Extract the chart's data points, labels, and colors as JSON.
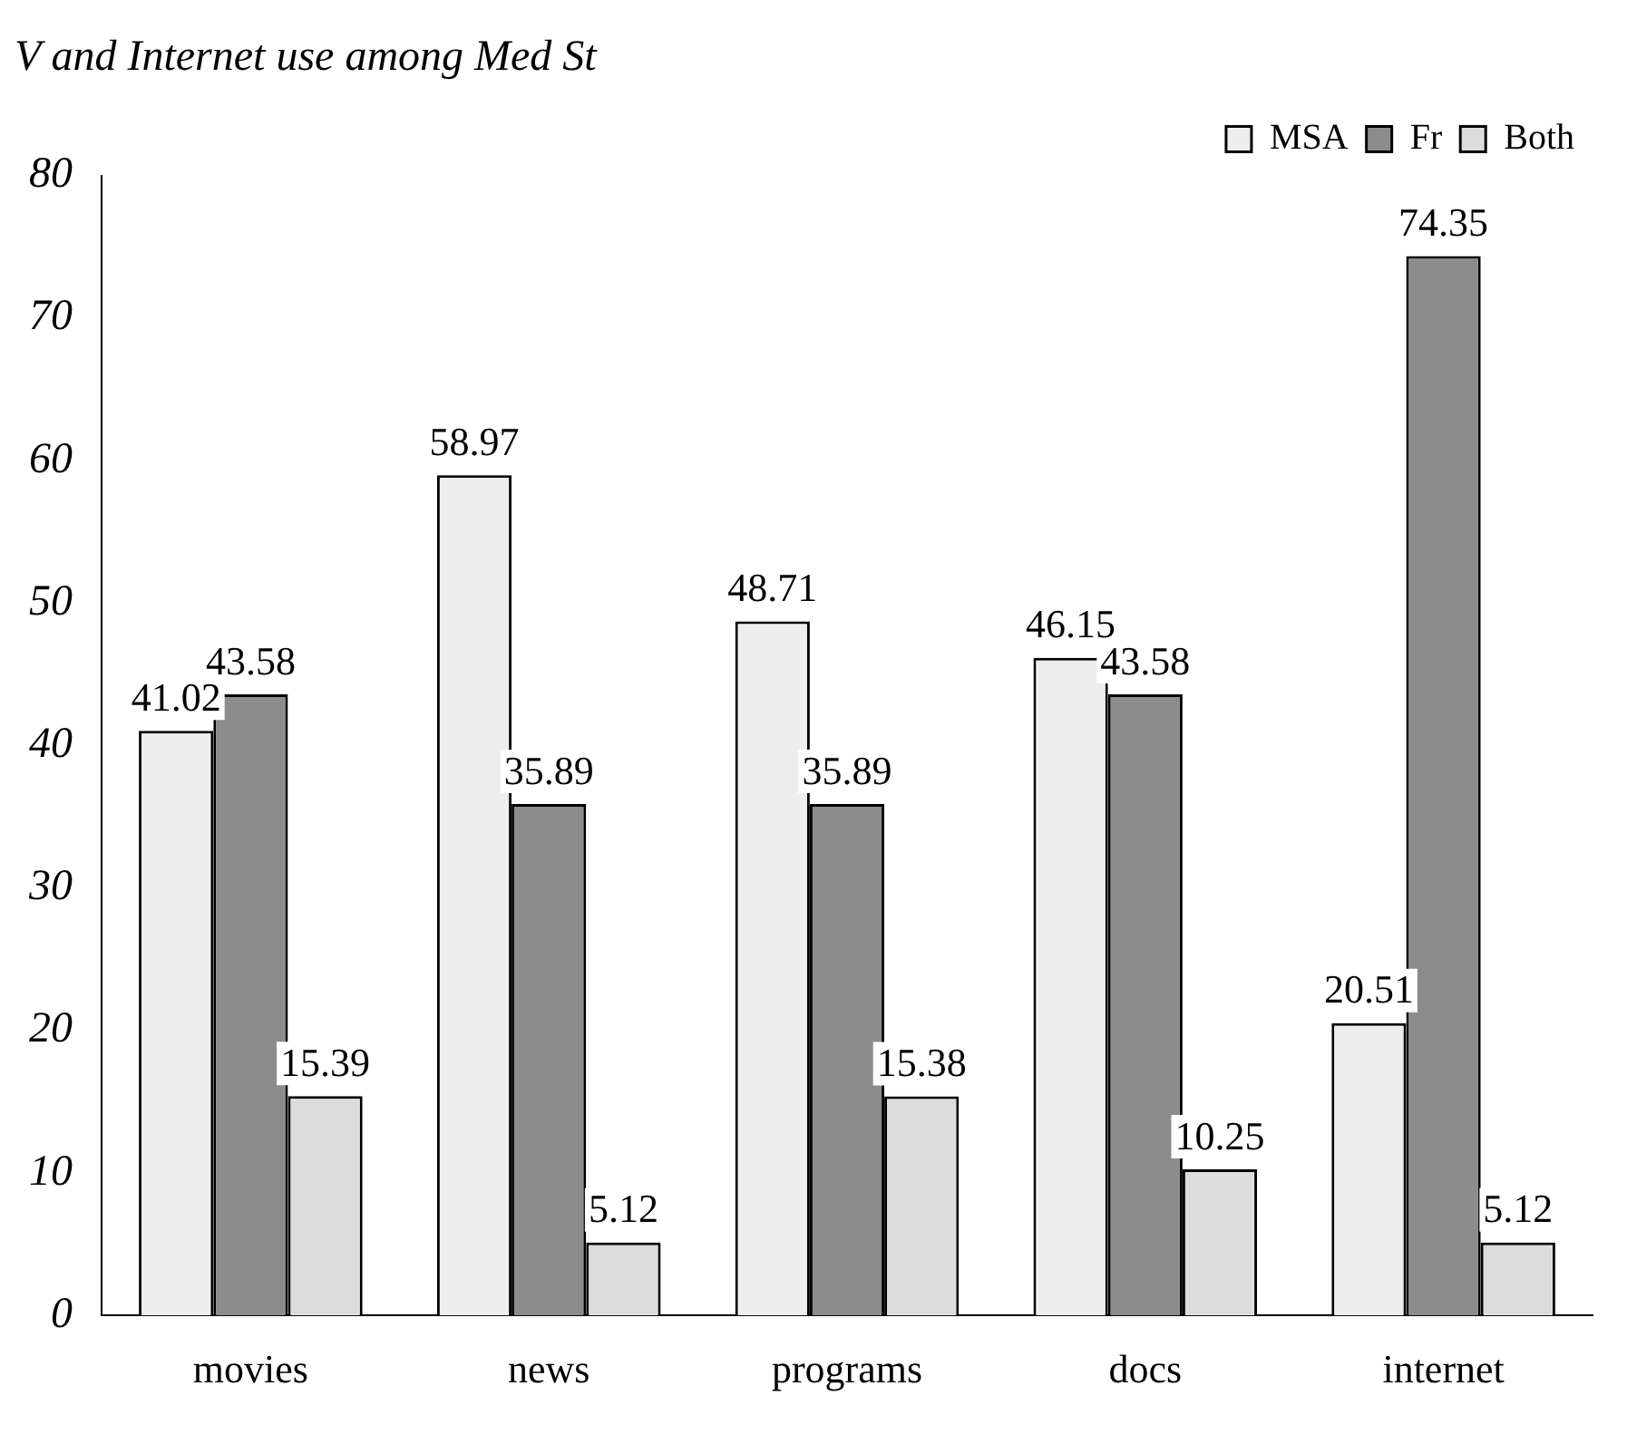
{
  "chart_data": {
    "type": "bar",
    "title": "V and Internet use among Med St",
    "categories": [
      "movies",
      "news",
      "programs",
      "docs",
      "internet"
    ],
    "series": [
      {
        "name": "MSA",
        "color": "#eeeeee",
        "values": [
          41.02,
          58.97,
          48.71,
          46.15,
          20.51
        ]
      },
      {
        "name": "Fr",
        "color": "#8c8c8c",
        "values": [
          43.58,
          35.89,
          35.89,
          43.58,
          74.35
        ]
      },
      {
        "name": "Both",
        "color": "#dcdcdc",
        "values": [
          15.39,
          5.12,
          15.38,
          10.25,
          5.12
        ]
      }
    ],
    "ylim": [
      0,
      80
    ],
    "yticks": [
      0,
      10,
      20,
      30,
      40,
      50,
      60,
      70,
      80
    ],
    "grid": false,
    "legend": "top right",
    "data_labels": true
  }
}
